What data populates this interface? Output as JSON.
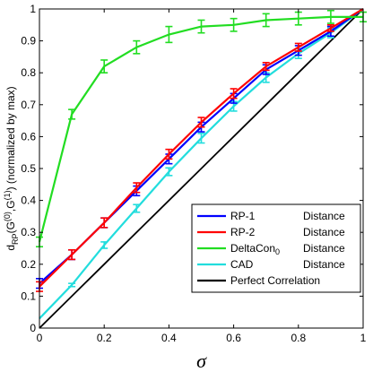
{
  "chart_data": {
    "type": "line",
    "xlabel": "σ",
    "ylabel_parts": [
      "d",
      "RP",
      "(G",
      "(0)",
      ",G",
      "(1)",
      ") (normalized by max)"
    ],
    "xlim": [
      0,
      1
    ],
    "ylim": [
      0,
      1
    ],
    "x_ticks": [
      "0",
      "0.2",
      "0.4",
      "0.6",
      "0.8",
      "1"
    ],
    "y_ticks": [
      "0",
      "0.1",
      "0.2",
      "0.3",
      "0.4",
      "0.5",
      "0.6",
      "0.7",
      "0.8",
      "0.9",
      "1"
    ],
    "x": [
      0,
      0.1,
      0.2,
      0.3,
      0.4,
      0.5,
      0.6,
      0.7,
      0.8,
      0.9,
      1.0
    ],
    "series": [
      {
        "name": "RP-1",
        "legend_suffix": "Distance",
        "color": "#0000ff",
        "values": [
          0.14,
          0.23,
          0.33,
          0.43,
          0.53,
          0.63,
          0.72,
          0.81,
          0.87,
          0.93,
          1.0
        ],
        "err": [
          0.015,
          0.015,
          0.015,
          0.015,
          0.015,
          0.015,
          0.015,
          0.015,
          0.015,
          0.015,
          0.0
        ]
      },
      {
        "name": "RP-2",
        "legend_suffix": "Distance",
        "color": "#ff0000",
        "values": [
          0.13,
          0.23,
          0.33,
          0.44,
          0.545,
          0.645,
          0.735,
          0.82,
          0.88,
          0.94,
          1.0
        ],
        "err": [
          0.015,
          0.015,
          0.015,
          0.015,
          0.015,
          0.015,
          0.015,
          0.012,
          0.012,
          0.01,
          0.0
        ]
      },
      {
        "name": "DeltaCon",
        "name_subscript": "0",
        "legend_suffix": "Distance",
        "color": "#22dd22",
        "values": [
          0.27,
          0.67,
          0.82,
          0.88,
          0.92,
          0.945,
          0.95,
          0.965,
          0.97,
          0.975,
          0.975
        ],
        "err": [
          0.015,
          0.015,
          0.02,
          0.02,
          0.025,
          0.02,
          0.02,
          0.02,
          0.02,
          0.02,
          0.015
        ]
      },
      {
        "name": "CAD",
        "legend_suffix": "Distance",
        "color": "#22dddd",
        "values": [
          0.03,
          0.135,
          0.26,
          0.375,
          0.49,
          0.595,
          0.695,
          0.785,
          0.86,
          0.925,
          1.0
        ],
        "err": [
          0.0,
          0.005,
          0.01,
          0.012,
          0.012,
          0.015,
          0.015,
          0.015,
          0.015,
          0.015,
          0.0
        ]
      },
      {
        "name": "Perfect Correlation",
        "legend_suffix": "",
        "color": "#000000",
        "values": [
          0,
          0.1,
          0.2,
          0.3,
          0.4,
          0.5,
          0.6,
          0.7,
          0.8,
          0.9,
          1.0
        ],
        "err": null
      }
    ],
    "legend_position": "lower-right",
    "grid": false
  }
}
